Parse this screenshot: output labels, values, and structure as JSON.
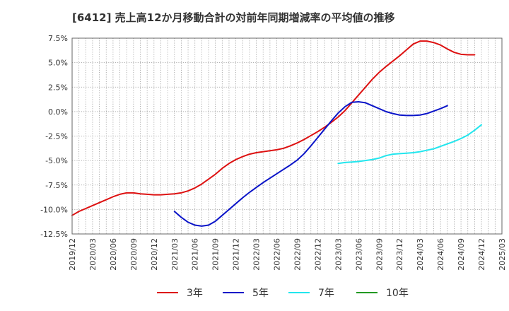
{
  "chart_data": {
    "type": "line",
    "title": "[6412]  売上高12か月移動合計の対前年同期増減率の平均値の推移",
    "xlabel": "",
    "ylabel": "",
    "ylim": [
      -12.5,
      7.5
    ],
    "yticks": [
      7.5,
      5.0,
      2.5,
      0.0,
      -2.5,
      -5.0,
      -7.5,
      -10.0,
      -12.5
    ],
    "ytick_labels": [
      "7.5%",
      "5.0%",
      "2.5%",
      "0.0%",
      "-2.5%",
      "-5.0%",
      "-7.5%",
      "-10.0%",
      "-12.5%"
    ],
    "xticks": [
      "2019/12",
      "2020/03",
      "2020/06",
      "2020/09",
      "2020/12",
      "2021/03",
      "2021/06",
      "2021/09",
      "2021/12",
      "2022/03",
      "2022/06",
      "2022/09",
      "2022/12",
      "2023/03",
      "2023/06",
      "2023/09",
      "2023/12",
      "2024/03",
      "2024/06",
      "2024/09",
      "2024/12",
      "2025/03"
    ],
    "grid": true,
    "legend_position": "bottom",
    "series": [
      {
        "name": "3年",
        "color": "#dd1111",
        "points": [
          [
            "2019/12",
            -10.6
          ],
          [
            "2020/01",
            -10.2
          ],
          [
            "2020/02",
            -9.9
          ],
          [
            "2020/03",
            -9.6
          ],
          [
            "2020/04",
            -9.3
          ],
          [
            "2020/05",
            -9.0
          ],
          [
            "2020/06",
            -8.7
          ],
          [
            "2020/07",
            -8.45
          ],
          [
            "2020/08",
            -8.3
          ],
          [
            "2020/09",
            -8.3
          ],
          [
            "2020/10",
            -8.4
          ],
          [
            "2020/11",
            -8.45
          ],
          [
            "2020/12",
            -8.5
          ],
          [
            "2021/01",
            -8.5
          ],
          [
            "2021/02",
            -8.45
          ],
          [
            "2021/03",
            -8.4
          ],
          [
            "2021/04",
            -8.3
          ],
          [
            "2021/05",
            -8.1
          ],
          [
            "2021/06",
            -7.8
          ],
          [
            "2021/07",
            -7.4
          ],
          [
            "2021/08",
            -6.9
          ],
          [
            "2021/09",
            -6.4
          ],
          [
            "2021/10",
            -5.8
          ],
          [
            "2021/11",
            -5.3
          ],
          [
            "2021/12",
            -4.9
          ],
          [
            "2022/01",
            -4.6
          ],
          [
            "2022/02",
            -4.35
          ],
          [
            "2022/03",
            -4.2
          ],
          [
            "2022/04",
            -4.1
          ],
          [
            "2022/05",
            -4.0
          ],
          [
            "2022/06",
            -3.9
          ],
          [
            "2022/07",
            -3.75
          ],
          [
            "2022/08",
            -3.5
          ],
          [
            "2022/09",
            -3.2
          ],
          [
            "2022/10",
            -2.85
          ],
          [
            "2022/11",
            -2.45
          ],
          [
            "2022/12",
            -2.05
          ],
          [
            "2023/01",
            -1.6
          ],
          [
            "2023/02",
            -1.1
          ],
          [
            "2023/03",
            -0.55
          ],
          [
            "2023/04",
            0.1
          ],
          [
            "2023/05",
            0.9
          ],
          [
            "2023/06",
            1.7
          ],
          [
            "2023/07",
            2.5
          ],
          [
            "2023/08",
            3.3
          ],
          [
            "2023/09",
            4.0
          ],
          [
            "2023/10",
            4.6
          ],
          [
            "2023/11",
            5.15
          ],
          [
            "2023/12",
            5.7
          ],
          [
            "2024/01",
            6.3
          ],
          [
            "2024/02",
            6.9
          ],
          [
            "2024/03",
            7.2
          ],
          [
            "2024/04",
            7.2
          ],
          [
            "2024/05",
            7.05
          ],
          [
            "2024/06",
            6.8
          ],
          [
            "2024/07",
            6.4
          ],
          [
            "2024/08",
            6.05
          ],
          [
            "2024/09",
            5.85
          ],
          [
            "2024/10",
            5.8
          ],
          [
            "2024/11",
            5.8
          ]
        ]
      },
      {
        "name": "5年",
        "color": "#0a14c8",
        "points": [
          [
            "2021/03",
            -10.2
          ],
          [
            "2021/04",
            -10.8
          ],
          [
            "2021/05",
            -11.3
          ],
          [
            "2021/06",
            -11.6
          ],
          [
            "2021/07",
            -11.7
          ],
          [
            "2021/08",
            -11.6
          ],
          [
            "2021/09",
            -11.2
          ],
          [
            "2021/10",
            -10.6
          ],
          [
            "2021/11",
            -10.0
          ],
          [
            "2021/12",
            -9.4
          ],
          [
            "2022/01",
            -8.8
          ],
          [
            "2022/02",
            -8.25
          ],
          [
            "2022/03",
            -7.75
          ],
          [
            "2022/04",
            -7.25
          ],
          [
            "2022/05",
            -6.8
          ],
          [
            "2022/06",
            -6.35
          ],
          [
            "2022/07",
            -5.9
          ],
          [
            "2022/08",
            -5.45
          ],
          [
            "2022/09",
            -4.95
          ],
          [
            "2022/10",
            -4.3
          ],
          [
            "2022/11",
            -3.5
          ],
          [
            "2022/12",
            -2.65
          ],
          [
            "2023/01",
            -1.8
          ],
          [
            "2023/02",
            -0.95
          ],
          [
            "2023/03",
            -0.15
          ],
          [
            "2023/04",
            0.5
          ],
          [
            "2023/05",
            0.95
          ],
          [
            "2023/06",
            1.0
          ],
          [
            "2023/07",
            0.9
          ],
          [
            "2023/08",
            0.6
          ],
          [
            "2023/09",
            0.3
          ],
          [
            "2023/10",
            0.0
          ],
          [
            "2023/11",
            -0.2
          ],
          [
            "2023/12",
            -0.35
          ],
          [
            "2024/01",
            -0.4
          ],
          [
            "2024/02",
            -0.4
          ],
          [
            "2024/03",
            -0.35
          ],
          [
            "2024/04",
            -0.2
          ],
          [
            "2024/05",
            0.05
          ],
          [
            "2024/06",
            0.3
          ],
          [
            "2024/07",
            0.6
          ]
        ]
      },
      {
        "name": "7年",
        "color": "#22e6ee",
        "points": [
          [
            "2023/03",
            -5.3
          ],
          [
            "2023/04",
            -5.2
          ],
          [
            "2023/05",
            -5.15
          ],
          [
            "2023/06",
            -5.1
          ],
          [
            "2023/07",
            -5.0
          ],
          [
            "2023/08",
            -4.9
          ],
          [
            "2023/09",
            -4.75
          ],
          [
            "2023/10",
            -4.5
          ],
          [
            "2023/11",
            -4.35
          ],
          [
            "2023/12",
            -4.3
          ],
          [
            "2024/01",
            -4.25
          ],
          [
            "2024/02",
            -4.2
          ],
          [
            "2024/03",
            -4.1
          ],
          [
            "2024/04",
            -3.95
          ],
          [
            "2024/05",
            -3.8
          ],
          [
            "2024/06",
            -3.55
          ],
          [
            "2024/07",
            -3.3
          ],
          [
            "2024/08",
            -3.05
          ],
          [
            "2024/09",
            -2.75
          ],
          [
            "2024/10",
            -2.4
          ],
          [
            "2024/11",
            -1.9
          ],
          [
            "2024/12",
            -1.35
          ]
        ]
      },
      {
        "name": "10年",
        "color": "#229922",
        "points": []
      }
    ]
  }
}
